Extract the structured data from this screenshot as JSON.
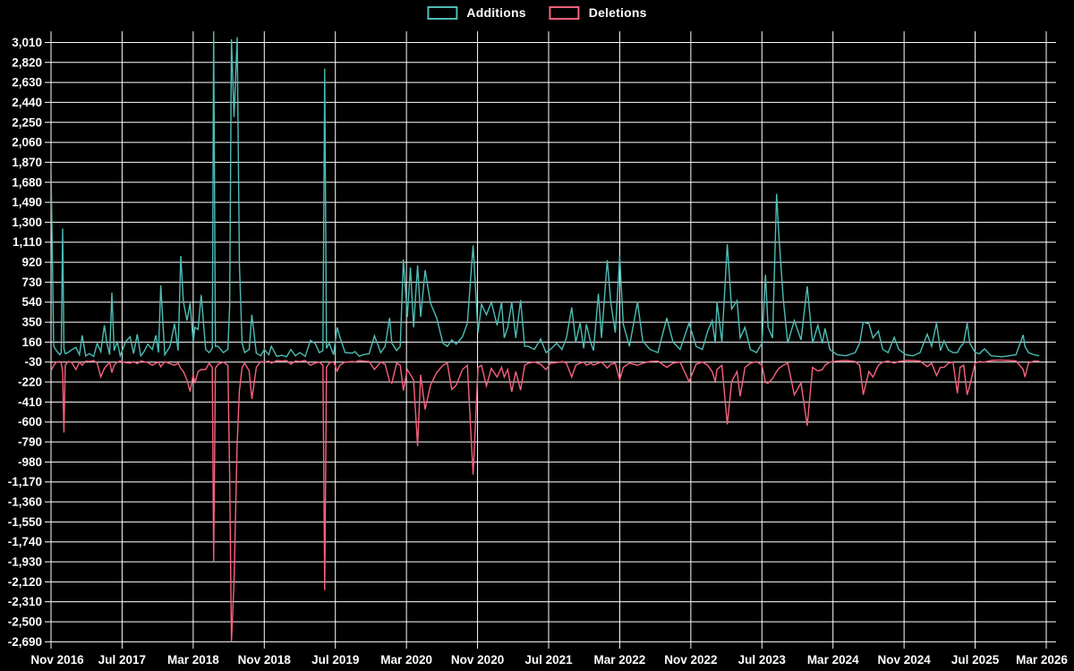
{
  "legend": {
    "items": [
      {
        "label": "Additions",
        "color": "#4dbdb5"
      },
      {
        "label": "Deletions",
        "color": "#f8617d"
      }
    ]
  },
  "colors": {
    "background": "#000000",
    "grid": "#ffffff",
    "text": "#ffffff",
    "additions": "#4dbdb5",
    "deletions": "#f8617d"
  },
  "chart_data": {
    "type": "line",
    "title": "",
    "xlabel": "",
    "ylabel": "",
    "legend_position": "top-center",
    "grid": true,
    "x_unit": "months since Nov 2016",
    "x_range": [
      0,
      112
    ],
    "ylim": [
      -2690,
      3010
    ],
    "y_tick_step": 190,
    "y_ticks": [
      {
        "value": 3010,
        "label": "3,010"
      },
      {
        "value": 2820,
        "label": "2,820"
      },
      {
        "value": 2630,
        "label": "2,630"
      },
      {
        "value": 2440,
        "label": "2,440"
      },
      {
        "value": 2250,
        "label": "2,250"
      },
      {
        "value": 2060,
        "label": "2,060"
      },
      {
        "value": 1870,
        "label": "1,870"
      },
      {
        "value": 1680,
        "label": "1,680"
      },
      {
        "value": 1490,
        "label": "1,490"
      },
      {
        "value": 1300,
        "label": "1,300"
      },
      {
        "value": 1110,
        "label": "1,110"
      },
      {
        "value": 920,
        "label": "920"
      },
      {
        "value": 730,
        "label": "730"
      },
      {
        "value": 540,
        "label": "540"
      },
      {
        "value": 350,
        "label": "350"
      },
      {
        "value": 160,
        "label": "160"
      },
      {
        "value": -30,
        "label": "-30"
      },
      {
        "value": -220,
        "label": "-220"
      },
      {
        "value": -410,
        "label": "-410"
      },
      {
        "value": -600,
        "label": "-600"
      },
      {
        "value": -790,
        "label": "-790"
      },
      {
        "value": -980,
        "label": "-980"
      },
      {
        "value": -1170,
        "label": "-1,170"
      },
      {
        "value": -1360,
        "label": "-1,360"
      },
      {
        "value": -1550,
        "label": "-1,550"
      },
      {
        "value": -1740,
        "label": "-1,740"
      },
      {
        "value": -1930,
        "label": "-1,930"
      },
      {
        "value": -2120,
        "label": "-2,120"
      },
      {
        "value": -2310,
        "label": "-2,310"
      },
      {
        "value": -2500,
        "label": "-2,500"
      },
      {
        "value": -2690,
        "label": "-2,690"
      }
    ],
    "x_ticks": [
      {
        "month": 0,
        "label": "Nov 2016"
      },
      {
        "month": 8,
        "label": "Jul 2017"
      },
      {
        "month": 16,
        "label": "Mar 2018"
      },
      {
        "month": 24,
        "label": "Nov 2018"
      },
      {
        "month": 32,
        "label": "Jul 2019"
      },
      {
        "month": 40,
        "label": "Mar 2020"
      },
      {
        "month": 48,
        "label": "Nov 2020"
      },
      {
        "month": 56,
        "label": "Jul 2021"
      },
      {
        "month": 64,
        "label": "Mar 2022"
      },
      {
        "month": 72,
        "label": "Nov 2022"
      },
      {
        "month": 80,
        "label": "Jul 2023"
      },
      {
        "month": 88,
        "label": "Mar 2024"
      },
      {
        "month": 96,
        "label": "Nov 2024"
      },
      {
        "month": 104,
        "label": "Jul 2025"
      },
      {
        "month": 112,
        "label": "Mar 2026"
      }
    ],
    "series_names": [
      "Additions",
      "Deletions"
    ],
    "points_format": [
      "month_offset",
      "additions",
      "deletions"
    ],
    "points": [
      [
        0,
        1830,
        -115
      ],
      [
        0.3,
        120,
        -60
      ],
      [
        0.6,
        80,
        -30
      ],
      [
        1.0,
        40,
        -25
      ],
      [
        1.15,
        60,
        -40
      ],
      [
        1.31,
        1240,
        -120
      ],
      [
        1.45,
        100,
        -700
      ],
      [
        1.6,
        50,
        -60
      ],
      [
        1.9,
        60,
        -25
      ],
      [
        2.3,
        85,
        -30
      ],
      [
        2.8,
        110,
        -100
      ],
      [
        3.2,
        40,
        -30
      ],
      [
        3.5,
        225,
        -60
      ],
      [
        3.9,
        30,
        -20
      ],
      [
        4.3,
        50,
        -25
      ],
      [
        4.8,
        25,
        -15
      ],
      [
        5.2,
        150,
        -40
      ],
      [
        5.6,
        70,
        -170
      ],
      [
        6.0,
        320,
        -90
      ],
      [
        6.3,
        150,
        -60
      ],
      [
        6.6,
        40,
        -30
      ],
      [
        6.85,
        630,
        -130
      ],
      [
        7.1,
        80,
        -60
      ],
      [
        7.45,
        160,
        -30
      ],
      [
        7.8,
        30,
        -20
      ],
      [
        8.4,
        165,
        -35
      ],
      [
        8.9,
        210,
        -40
      ],
      [
        9.3,
        50,
        -25
      ],
      [
        9.7,
        235,
        -45
      ],
      [
        10.1,
        30,
        -20
      ],
      [
        10.4,
        60,
        -25
      ],
      [
        10.9,
        140,
        -35
      ],
      [
        11.4,
        90,
        -60
      ],
      [
        11.8,
        225,
        -40
      ],
      [
        12.1,
        60,
        -30
      ],
      [
        12.35,
        700,
        -75
      ],
      [
        12.8,
        40,
        -25
      ],
      [
        13.4,
        120,
        -45
      ],
      [
        13.9,
        335,
        -60
      ],
      [
        14.3,
        80,
        -40
      ],
      [
        14.6,
        980,
        -90
      ],
      [
        14.9,
        545,
        -120
      ],
      [
        15.3,
        365,
        -200
      ],
      [
        15.65,
        530,
        -310
      ],
      [
        16.0,
        160,
        -150
      ],
      [
        16.2,
        300,
        -230
      ],
      [
        16.55,
        280,
        -120
      ],
      [
        16.9,
        610,
        -100
      ],
      [
        17.4,
        90,
        -100
      ],
      [
        17.8,
        60,
        -40
      ],
      [
        18.15,
        100,
        -80
      ],
      [
        18.3,
        3150,
        -1930
      ],
      [
        18.5,
        120,
        -90
      ],
      [
        18.8,
        120,
        -50
      ],
      [
        19.4,
        60,
        -30
      ],
      [
        19.9,
        90,
        -60
      ],
      [
        20.1,
        500,
        -1100
      ],
      [
        20.3,
        3040,
        -2690
      ],
      [
        20.6,
        2300,
        -2120
      ],
      [
        20.95,
        3060,
        -800
      ],
      [
        21.2,
        900,
        -300
      ],
      [
        21.5,
        150,
        -80
      ],
      [
        21.8,
        60,
        -40
      ],
      [
        22.3,
        90,
        -115
      ],
      [
        22.6,
        420,
        -380
      ],
      [
        23.1,
        55,
        -80
      ],
      [
        23.6,
        30,
        -25
      ],
      [
        24.0,
        90,
        -30
      ],
      [
        24.5,
        40,
        -20
      ],
      [
        24.8,
        120,
        -40
      ],
      [
        25.4,
        25,
        -15
      ],
      [
        26.0,
        35,
        -20
      ],
      [
        26.5,
        20,
        -15
      ],
      [
        27.0,
        90,
        -50
      ],
      [
        27.5,
        30,
        -20
      ],
      [
        28.0,
        60,
        -25
      ],
      [
        28.6,
        25,
        -15
      ],
      [
        29.2,
        175,
        -60
      ],
      [
        29.7,
        150,
        -40
      ],
      [
        30.2,
        60,
        -30
      ],
      [
        30.6,
        80,
        -60
      ],
      [
        30.8,
        2760,
        -2200
      ],
      [
        31.0,
        100,
        -80
      ],
      [
        31.3,
        150,
        -40
      ],
      [
        31.8,
        40,
        -25
      ],
      [
        32.2,
        300,
        -115
      ],
      [
        32.5,
        210,
        -60
      ],
      [
        33.1,
        60,
        -30
      ],
      [
        33.9,
        55,
        -25
      ],
      [
        34.2,
        70,
        -30
      ],
      [
        34.7,
        25,
        -15
      ],
      [
        35.1,
        40,
        -20
      ],
      [
        35.8,
        50,
        -25
      ],
      [
        36.4,
        220,
        -100
      ],
      [
        37.1,
        60,
        -30
      ],
      [
        37.6,
        120,
        -50
      ],
      [
        38.1,
        390,
        -215
      ],
      [
        38.35,
        150,
        -230
      ],
      [
        38.9,
        80,
        -40
      ],
      [
        39.3,
        120,
        -60
      ],
      [
        39.65,
        945,
        -300
      ],
      [
        40.1,
        400,
        -100
      ],
      [
        40.45,
        870,
        -150
      ],
      [
        40.8,
        300,
        -200
      ],
      [
        41.25,
        890,
        -830
      ],
      [
        41.6,
        400,
        -150
      ],
      [
        42.1,
        845,
        -480
      ],
      [
        42.7,
        530,
        -250
      ],
      [
        43.4,
        390,
        -130
      ],
      [
        44.1,
        150,
        -60
      ],
      [
        44.6,
        120,
        -40
      ],
      [
        45.1,
        180,
        -290
      ],
      [
        45.6,
        140,
        -250
      ],
      [
        46.3,
        210,
        -100
      ],
      [
        46.85,
        340,
        -60
      ],
      [
        47.5,
        1080,
        -1100
      ],
      [
        48.05,
        250,
        -80
      ],
      [
        48.45,
        520,
        -60
      ],
      [
        49.0,
        420,
        -256
      ],
      [
        49.55,
        540,
        -90
      ],
      [
        50.2,
        320,
        -172
      ],
      [
        50.7,
        540,
        -80
      ],
      [
        51.0,
        200,
        -172
      ],
      [
        51.4,
        300,
        -100
      ],
      [
        51.85,
        540,
        -312
      ],
      [
        52.3,
        200,
        -120
      ],
      [
        52.85,
        560,
        -298
      ],
      [
        53.3,
        120,
        -60
      ],
      [
        53.7,
        120,
        -40
      ],
      [
        54.4,
        90,
        -30
      ],
      [
        55.1,
        190,
        -50
      ],
      [
        55.7,
        60,
        -101
      ],
      [
        56.2,
        90,
        -40
      ],
      [
        56.9,
        150,
        -35
      ],
      [
        57.5,
        90,
        -25
      ],
      [
        58.0,
        200,
        -40
      ],
      [
        58.6,
        490,
        -172
      ],
      [
        59.05,
        160,
        -60
      ],
      [
        59.55,
        340,
        -40
      ],
      [
        59.95,
        100,
        -30
      ],
      [
        60.25,
        330,
        -59
      ],
      [
        60.75,
        150,
        -40
      ],
      [
        61.05,
        80,
        -59
      ],
      [
        61.6,
        620,
        -40
      ],
      [
        61.95,
        200,
        -30
      ],
      [
        62.6,
        940,
        -87
      ],
      [
        63.0,
        530,
        -50
      ],
      [
        63.5,
        250,
        -40
      ],
      [
        64.0,
        980,
        -200
      ],
      [
        64.4,
        330,
        -80
      ],
      [
        65.1,
        120,
        -40
      ],
      [
        66.0,
        540,
        -60
      ],
      [
        66.6,
        170,
        -40
      ],
      [
        67.4,
        90,
        -25
      ],
      [
        68.3,
        60,
        -20
      ],
      [
        69.3,
        390,
        -80
      ],
      [
        70.0,
        160,
        -40
      ],
      [
        70.8,
        90,
        -30
      ],
      [
        71.8,
        340,
        -215
      ],
      [
        72.6,
        120,
        -50
      ],
      [
        73.3,
        90,
        -30
      ],
      [
        73.9,
        265,
        -60
      ],
      [
        74.4,
        365,
        -120
      ],
      [
        74.75,
        150,
        -214
      ],
      [
        74.95,
        540,
        -100
      ],
      [
        75.5,
        160,
        -60
      ],
      [
        76.1,
        1090,
        -622
      ],
      [
        76.6,
        475,
        -214
      ],
      [
        77.2,
        555,
        -120
      ],
      [
        77.55,
        200,
        -355
      ],
      [
        78.1,
        300,
        -80
      ],
      [
        78.7,
        90,
        -40
      ],
      [
        79.4,
        60,
        -25
      ],
      [
        80.0,
        150,
        -60
      ],
      [
        80.4,
        800,
        -225
      ],
      [
        80.7,
        300,
        -230
      ],
      [
        81.2,
        200,
        -186
      ],
      [
        81.65,
        1570,
        -120
      ],
      [
        81.9,
        1180,
        -90
      ],
      [
        82.4,
        575,
        -60
      ],
      [
        82.9,
        150,
        -40
      ],
      [
        83.65,
        365,
        -341
      ],
      [
        84.4,
        180,
        -228
      ],
      [
        85.1,
        690,
        -636
      ],
      [
        85.7,
        150,
        -80
      ],
      [
        86.3,
        320,
        -115
      ],
      [
        86.8,
        150,
        -101
      ],
      [
        87.1,
        290,
        -60
      ],
      [
        87.65,
        90,
        -30
      ],
      [
        88.45,
        40,
        -20
      ],
      [
        89.45,
        30,
        -15
      ],
      [
        90.5,
        60,
        -25
      ],
      [
        91.0,
        150,
        -60
      ],
      [
        91.4,
        350,
        -340
      ],
      [
        92.05,
        335,
        -120
      ],
      [
        92.5,
        200,
        -172
      ],
      [
        93.1,
        265,
        -60
      ],
      [
        93.6,
        90,
        -30
      ],
      [
        94.2,
        60,
        -20
      ],
      [
        94.9,
        205,
        -40
      ],
      [
        95.4,
        90,
        -25
      ],
      [
        96.2,
        40,
        -15
      ],
      [
        97.0,
        30,
        -15
      ],
      [
        97.8,
        60,
        -20
      ],
      [
        98.6,
        236,
        -73
      ],
      [
        99.1,
        120,
        -40
      ],
      [
        99.65,
        340,
        -158
      ],
      [
        100.1,
        80,
        -80
      ],
      [
        100.5,
        172,
        -80
      ],
      [
        101.0,
        85,
        -40
      ],
      [
        101.5,
        60,
        -30
      ],
      [
        102.0,
        60,
        -327
      ],
      [
        102.3,
        110,
        -80
      ],
      [
        102.7,
        150,
        -60
      ],
      [
        103.1,
        341,
        -341
      ],
      [
        103.4,
        150,
        -250
      ],
      [
        104.0,
        60,
        -40
      ],
      [
        104.5,
        50,
        -25
      ],
      [
        105.05,
        96,
        -30
      ],
      [
        105.8,
        30,
        -15
      ],
      [
        106.5,
        25,
        -12
      ],
      [
        107.0,
        20,
        -12
      ],
      [
        107.8,
        30,
        -15
      ],
      [
        108.6,
        40,
        -18
      ],
      [
        109.4,
        228,
        -100
      ],
      [
        109.6,
        120,
        -172
      ],
      [
        110.0,
        60,
        -40
      ],
      [
        110.6,
        40,
        -20
      ],
      [
        111.2,
        30,
        -20
      ]
    ]
  }
}
